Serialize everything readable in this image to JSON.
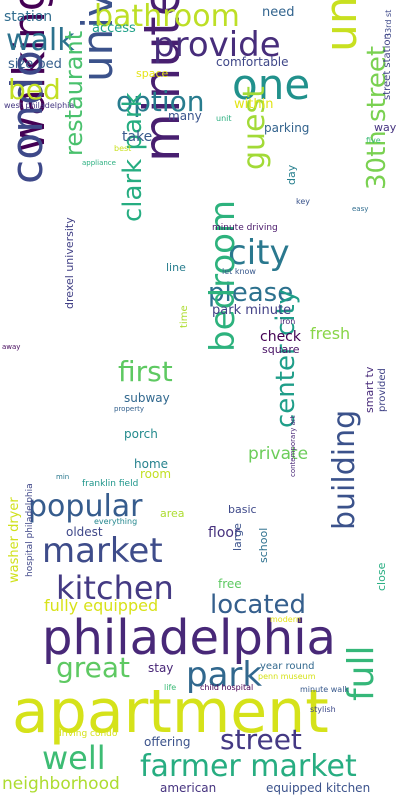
{
  "wordcloud": {
    "words": [
      {
        "text": "apartment",
        "color": "#d5e21a"
      },
      {
        "text": "philadelphia",
        "color": "#482878"
      },
      {
        "text": "walking condo",
        "color": "#440154"
      },
      {
        "text": "university city",
        "color": "#3b528b"
      },
      {
        "text": "minute walking",
        "color": "#481f70"
      },
      {
        "text": "university pennsylvania",
        "color": "#c8e020"
      },
      {
        "text": "one",
        "color": "#21918c"
      },
      {
        "text": "provide",
        "color": "#472d7b"
      },
      {
        "text": "bathroom",
        "color": "#bddf26"
      },
      {
        "text": "walk",
        "color": "#2c728e"
      },
      {
        "text": "condo",
        "color": "#3e4989"
      },
      {
        "text": "bed",
        "color": "#c2df23"
      },
      {
        "text": "option",
        "color": "#287c8e"
      },
      {
        "text": "guest",
        "color": "#a2da37"
      },
      {
        "text": "city",
        "color": "#2a788e"
      },
      {
        "text": "please",
        "color": "#2c718e"
      },
      {
        "text": "restaurant",
        "color": "#4ac16d"
      },
      {
        "text": "clark park",
        "color": "#26ad81"
      },
      {
        "text": "bedroom",
        "color": "#2db27d"
      },
      {
        "text": "30th street",
        "color": "#7ad151"
      },
      {
        "text": "first",
        "color": "#5ec962"
      },
      {
        "text": "popular",
        "color": "#365c8d"
      },
      {
        "text": "market",
        "color": "#3e4c8a"
      },
      {
        "text": "center city",
        "color": "#1f9e89"
      },
      {
        "text": "kitchen",
        "color": "#443a83"
      },
      {
        "text": "building",
        "color": "#3b528b"
      },
      {
        "text": "located",
        "color": "#355f8d"
      },
      {
        "text": "full",
        "color": "#35b779"
      },
      {
        "text": "great",
        "color": "#5ec962"
      },
      {
        "text": "park",
        "color": "#31688e"
      },
      {
        "text": "well",
        "color": "#3dbc74"
      },
      {
        "text": "farmer market",
        "color": "#27ad81"
      },
      {
        "text": "street",
        "color": "#443983"
      },
      {
        "text": "neighborhood",
        "color": "#addc30"
      },
      {
        "text": "fully equipped",
        "color": "#d8e219"
      },
      {
        "text": "private",
        "color": "#6ccd5a"
      },
      {
        "text": "fresh",
        "color": "#89d548"
      },
      {
        "text": "station",
        "color": "#2f6c8e"
      },
      {
        "text": "access",
        "color": "#1fa088"
      },
      {
        "text": "size bed",
        "color": "#355f8d"
      },
      {
        "text": "space",
        "color": "#e5e419"
      },
      {
        "text": "comfortable",
        "color": "#3f4788"
      },
      {
        "text": "need",
        "color": "#32648e"
      },
      {
        "text": "within",
        "color": "#e2e418"
      },
      {
        "text": "many",
        "color": "#3a548c"
      },
      {
        "text": "unit",
        "color": "#29af7f"
      },
      {
        "text": "best",
        "color": "#cae11f"
      },
      {
        "text": "take",
        "color": "#38598c"
      },
      {
        "text": "parking",
        "color": "#33638d"
      },
      {
        "text": "way",
        "color": "#46337f"
      },
      {
        "text": "five",
        "color": "#3aba76"
      },
      {
        "text": "appliance",
        "color": "#29af7f"
      },
      {
        "text": "west philadelphia",
        "color": "#453882"
      },
      {
        "text": "street station",
        "color": "#414487"
      },
      {
        "text": "33rd st",
        "color": "#3e4989"
      },
      {
        "text": "day",
        "color": "#277f8e"
      },
      {
        "text": "key",
        "color": "#3a548c"
      },
      {
        "text": "easy",
        "color": "#2f6c8e"
      },
      {
        "text": "minute driving",
        "color": "#481769"
      },
      {
        "text": "line",
        "color": "#287d8e"
      },
      {
        "text": "let know",
        "color": "#38588c"
      },
      {
        "text": "park minute",
        "color": "#424086"
      },
      {
        "text": "iron",
        "color": "#482475"
      },
      {
        "text": "time",
        "color": "#addc30"
      },
      {
        "text": "check",
        "color": "#440154"
      },
      {
        "text": "square",
        "color": "#471164"
      },
      {
        "text": "away",
        "color": "#460a5d"
      },
      {
        "text": "drexel university",
        "color": "#424186"
      },
      {
        "text": "subway",
        "color": "#31688e"
      },
      {
        "text": "property",
        "color": "#34618d"
      },
      {
        "text": "porch",
        "color": "#238a8d"
      },
      {
        "text": "home",
        "color": "#26828e"
      },
      {
        "text": "room",
        "color": "#c2df23"
      },
      {
        "text": "smart tv",
        "color": "#472a7a"
      },
      {
        "text": "provided",
        "color": "#414487"
      },
      {
        "text": "contemporary art",
        "color": "#482677"
      },
      {
        "text": "min",
        "color": "#2a788e"
      },
      {
        "text": "franklin field",
        "color": "#1f968b"
      },
      {
        "text": "basic",
        "color": "#3e4989"
      },
      {
        "text": "oldest",
        "color": "#3f4889"
      },
      {
        "text": "area",
        "color": "#addc30"
      },
      {
        "text": "everything",
        "color": "#24878e"
      },
      {
        "text": "floor",
        "color": "#46327e"
      },
      {
        "text": "large",
        "color": "#3b528b"
      },
      {
        "text": "school",
        "color": "#2d708e"
      },
      {
        "text": "close",
        "color": "#26ad81"
      },
      {
        "text": "free",
        "color": "#5ec962"
      },
      {
        "text": "washer dryer",
        "color": "#d0e11c"
      },
      {
        "text": "hospital philadelphia",
        "color": "#3f4788"
      },
      {
        "text": "modern",
        "color": "#e5e419"
      },
      {
        "text": "stay",
        "color": "#482677"
      },
      {
        "text": "year round",
        "color": "#31688e"
      },
      {
        "text": "penn museum",
        "color": "#d5e21a"
      },
      {
        "text": "life",
        "color": "#3aba76"
      },
      {
        "text": "child hospital",
        "color": "#440154"
      },
      {
        "text": "minute walk",
        "color": "#38598c"
      },
      {
        "text": "stylish",
        "color": "#3e4989"
      },
      {
        "text": "driving condo",
        "color": "#d5e21a"
      },
      {
        "text": "offering",
        "color": "#3b528b"
      },
      {
        "text": "american",
        "color": "#46337f"
      },
      {
        "text": "equipped kitchen",
        "color": "#3b528b"
      }
    ]
  }
}
